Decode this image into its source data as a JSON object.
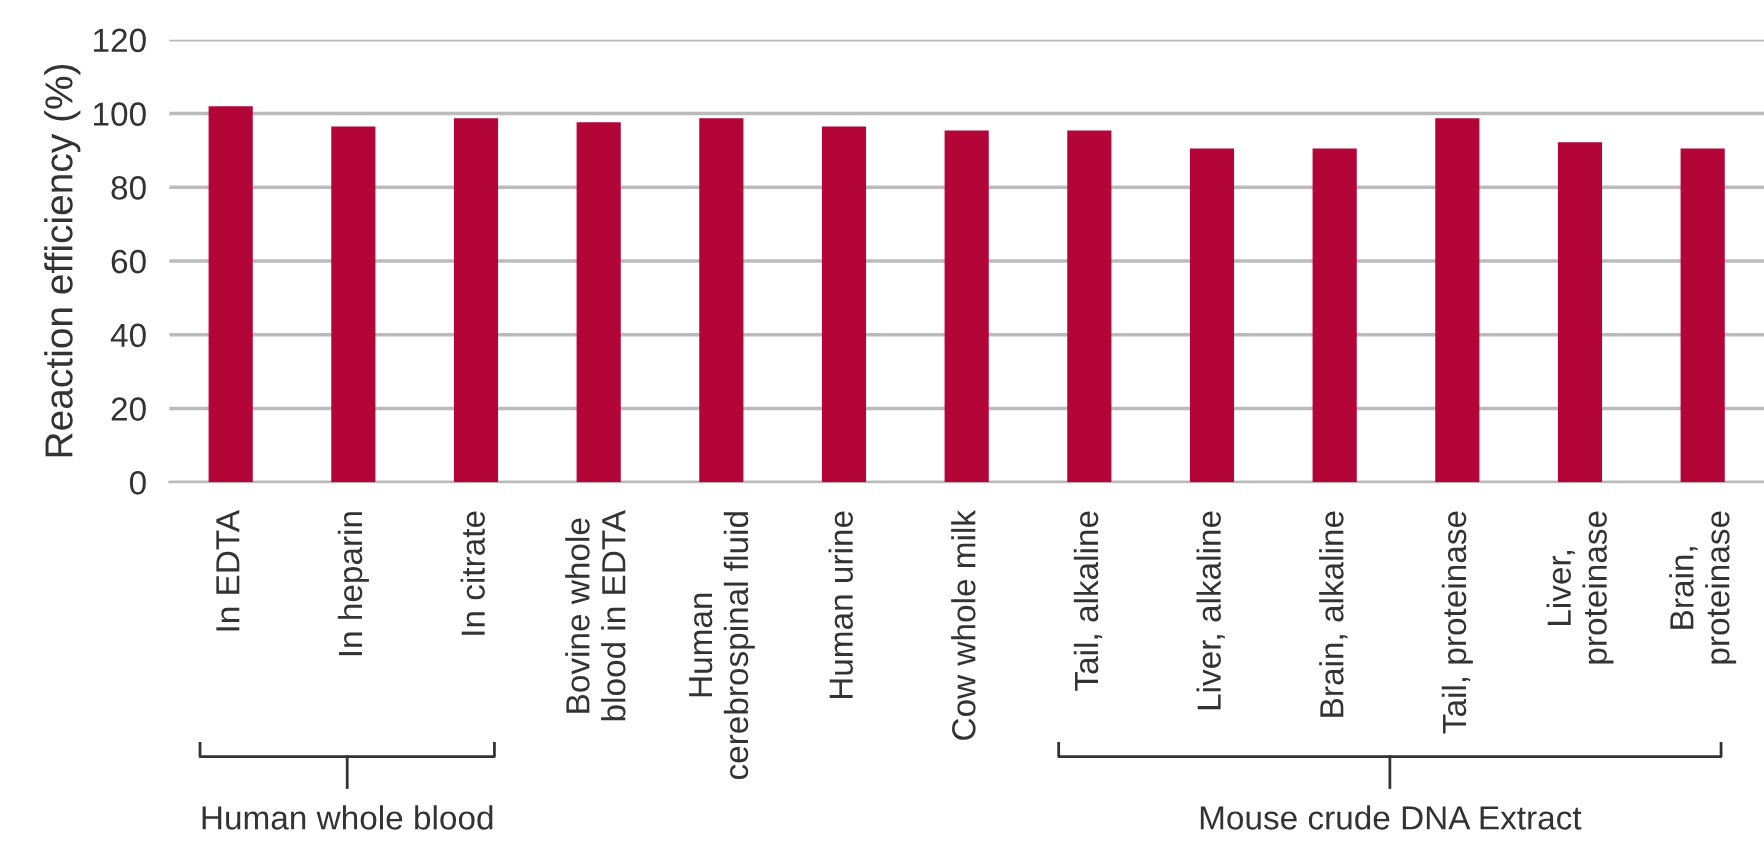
{
  "chart_data": {
    "type": "bar",
    "ylabel": "Reaction efficiency (%)",
    "categories": [
      "In EDTA",
      "In heparin",
      "In citrate",
      "Bovine whole\nblood in EDTA",
      "Human\ncerebrospinal fluid",
      "Human urine",
      "Cow whole milk",
      "Tail, alkaline",
      "Liver, alkaline",
      "Brain, alkaline",
      "Tail, proteinase",
      "Liver,\nproteinase",
      "Brain,\nproteinase"
    ],
    "values": [
      102,
      96.5,
      98.7,
      97.6,
      98.7,
      96.5,
      95.4,
      95.4,
      90.5,
      90.5,
      98.7,
      92.2,
      90.5
    ],
    "color": "#b30537",
    "ylim": [
      0,
      120
    ],
    "yticks": [
      0,
      20,
      40,
      60,
      80,
      100,
      120
    ],
    "grid": "y",
    "annotations": [
      "Human whole blood",
      "Mouse crude DNA Extract"
    ]
  }
}
